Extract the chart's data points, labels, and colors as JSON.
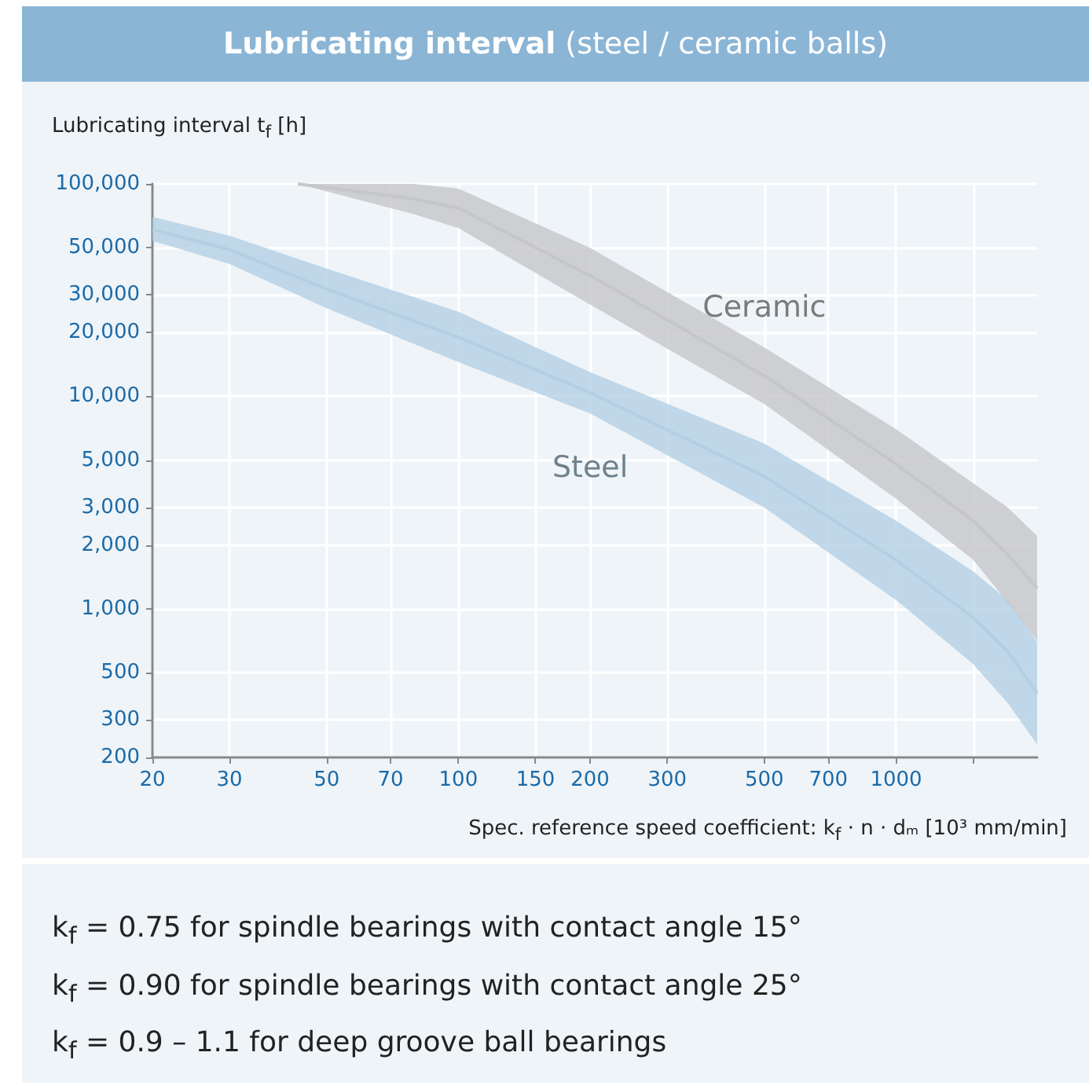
{
  "chart_data": {
    "type": "line",
    "title": "Lubricating interval (steel / ceramic balls)",
    "xlabel": "Spec. reference speed coefficient: k$_{f}$ · n · dₘ [10³ mm/min]",
    "ylabel": "Lubricating interval t$_{f}$ [h]",
    "log": "xy",
    "grid": true,
    "legend": false,
    "marker": "none",
    "xlim": [
      20,
      2100
    ],
    "ylim": [
      200,
      100000
    ],
    "xticks": [
      20,
      30,
      50,
      70,
      100,
      150,
      200,
      300,
      500,
      700,
      1000,
      {
        "value": 1500,
        "label": null
      }
    ],
    "yticks": [
      {
        "value": 200,
        "label": "200"
      },
      {
        "value": 300,
        "label": "300"
      },
      {
        "value": 500,
        "label": "500"
      },
      {
        "value": 1000,
        "label": "1,000"
      },
      {
        "value": 2000,
        "label": "2,000"
      },
      {
        "value": 3000,
        "label": "3,000"
      },
      {
        "value": 5000,
        "label": "5,000"
      },
      {
        "value": 10000,
        "label": "10,000"
      },
      {
        "value": 20000,
        "label": "20,000"
      },
      {
        "value": 30000,
        "label": "30,000"
      },
      {
        "value": 50000,
        "label": "50,000"
      },
      {
        "value": 100000,
        "label": "100,000"
      }
    ],
    "series": [
      {
        "name": "Steel",
        "color": "#b3d0e3",
        "x": [
          20,
          30,
          50,
          100,
          200,
          500,
          1000,
          1500,
          1800,
          2100
        ],
        "values": [
          61000,
          49000,
          32000,
          19000,
          10400,
          4200,
          1700,
          910,
          630,
          400
        ],
        "lower": [
          54000,
          42000,
          26000,
          14500,
          8300,
          3000,
          1100,
          550,
          360,
          230
        ],
        "upper": [
          70000,
          57000,
          40000,
          25000,
          13000,
          6000,
          2600,
          1500,
          1100,
          700
        ]
      },
      {
        "name": "Ceramic",
        "color": "#c5c6c8",
        "x": [
          43,
          79,
          100,
          200,
          500,
          1000,
          1500,
          1800,
          2100
        ],
        "values": [
          100000,
          85000,
          77000,
          37000,
          12500,
          4800,
          2600,
          1800,
          1250
        ],
        "lower": [
          100000,
          72000,
          62000,
          27000,
          9200,
          3300,
          1700,
          1070,
          710
        ],
        "upper": [
          100000,
          100000,
          95000,
          50000,
          17000,
          7000,
          3900,
          3000,
          2200
        ]
      }
    ],
    "annotations": [
      "k$_{f}$ = 0.75 for spindle bearings with contact angle 15°",
      "k$_{f}$ = 0.90 for spindle bearings with contact angle 25°",
      "k$_{f}$ = 0.9 – 1.1 for deep groove ball bearings"
    ]
  }
}
